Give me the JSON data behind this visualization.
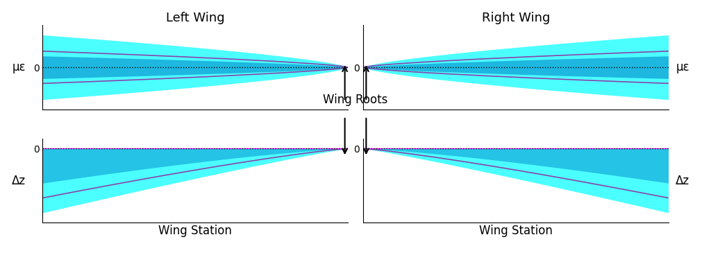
{
  "title_left": "Left Wing",
  "title_right": "Right Wing",
  "ylabel_top": "με",
  "ylabel_bottom": "Δz",
  "xlabel": "Wing Station",
  "zero_label": "0",
  "annotation_text": "Wing Roots",
  "bg_color": "#ffffff",
  "cyan_color": "#00ffff",
  "purple_color": "#8844aa",
  "magenta_color": "#ff00ff",
  "n_points": 300,
  "n_samples": 200
}
